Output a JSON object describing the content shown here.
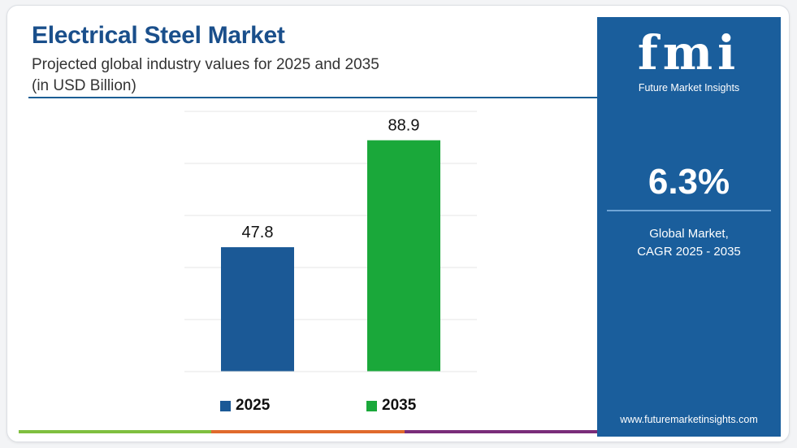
{
  "header": {
    "title": "Electrical Steel Market",
    "subtitle_line1": "Projected global industry values for 2025 and 2035",
    "subtitle_line2": "(in USD Billion)"
  },
  "chart_data": {
    "type": "bar",
    "categories": [
      "2025",
      "2035"
    ],
    "values": [
      47.8,
      88.9
    ],
    "value_labels": [
      "47.8",
      "88.9"
    ],
    "colors": [
      "#1b5996",
      "#1aa83a"
    ],
    "ylim": [
      0,
      100
    ],
    "grid": true,
    "legend": "bottom",
    "title": "Electrical Steel Market",
    "xlabel": "",
    "ylabel": ""
  },
  "legend": {
    "items": [
      {
        "label": "2025",
        "color": "#1b5996"
      },
      {
        "label": "2035",
        "color": "#1aa83a"
      }
    ]
  },
  "sidebar": {
    "logo": "fmi",
    "logo_subtitle": "Future Market Insights",
    "cagr_value": "6.3%",
    "cagr_label_line1": "Global Market,",
    "cagr_label_line2": "CAGR 2025 - 2035",
    "website": "www.futuremarketinsights.com",
    "background": "#1a5e9c"
  },
  "accent_bar_colors": [
    "#7fbf3f",
    "#e06a2c",
    "#7a2d7a"
  ]
}
